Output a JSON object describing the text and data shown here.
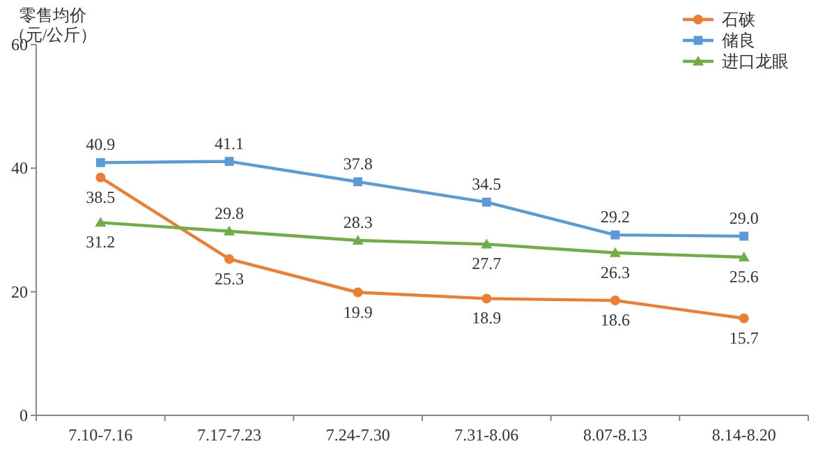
{
  "chart_data": {
    "type": "line",
    "ylabel": "零售均价（元/公斤）",
    "categories": [
      "7.10-7.16",
      "7.17-7.23",
      "7.24-7.30",
      "7.31-8.06",
      "8.07-8.13",
      "8.14-8.20"
    ],
    "series": [
      {
        "name": "石硖",
        "color": "#ed7d31",
        "marker": "circle",
        "values": [
          38.5,
          25.3,
          19.9,
          18.9,
          18.6,
          15.7
        ],
        "value_labels": [
          "38.5",
          "25.3",
          "19.9",
          "18.9",
          "18.6",
          "15.7"
        ]
      },
      {
        "name": "储良",
        "color": "#5b9bd5",
        "marker": "square",
        "values": [
          40.9,
          41.1,
          37.8,
          34.5,
          29.2,
          29.0
        ],
        "value_labels": [
          "40.9",
          "41.1",
          "37.8",
          "34.5",
          "29.2",
          "29.0"
        ]
      },
      {
        "name": "进口龙眼",
        "color": "#70ad47",
        "marker": "triangle",
        "values": [
          31.2,
          29.8,
          28.3,
          27.7,
          26.3,
          25.6
        ],
        "value_labels": [
          "31.2",
          "29.8",
          "28.3",
          "27.7",
          "26.3",
          "25.6"
        ]
      }
    ],
    "ylim": [
      0,
      60
    ],
    "yticks": [
      0,
      20,
      40,
      60
    ],
    "grid": false,
    "legend": "top right",
    "line_style": "solid"
  }
}
